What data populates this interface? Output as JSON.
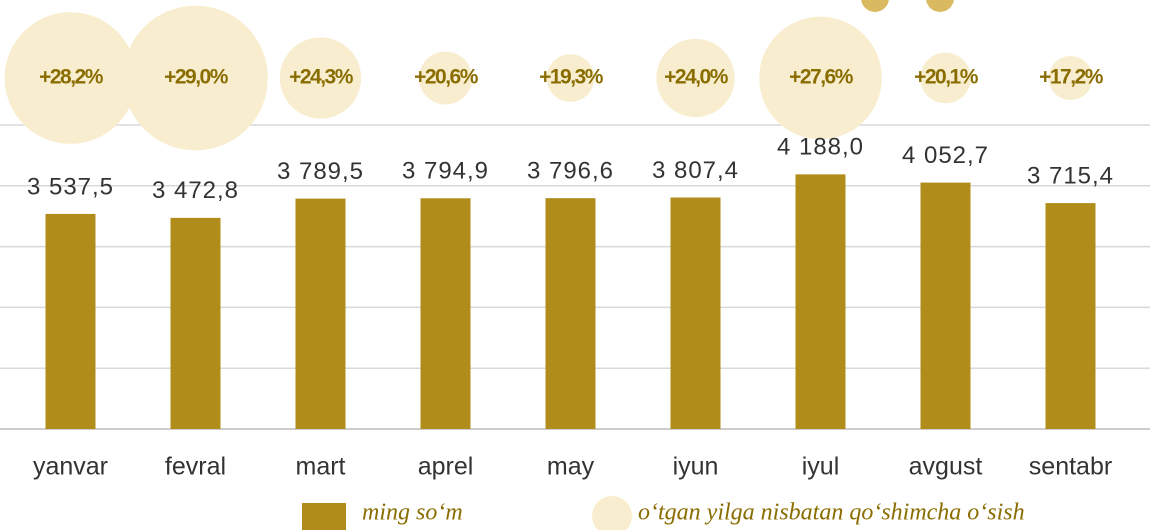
{
  "chart_data": {
    "type": "bar",
    "categories": [
      "yanvar",
      "fevral",
      "mart",
      "aprel",
      "may",
      "iyun",
      "iyul",
      "avgust",
      "sentabr"
    ],
    "series": [
      {
        "name": "ming so‘m",
        "color": "#b08d1a",
        "values": [
          3537.5,
          3472.8,
          3789.5,
          3794.9,
          3796.6,
          3807.4,
          4188.0,
          4052.7,
          3715.4
        ],
        "value_labels": [
          "3 537,5",
          "3 472,8",
          "3 789,5",
          "3 794,9",
          "3 796,6",
          "3 807,4",
          "4 188,0",
          "4 052,7",
          "3 715,4"
        ]
      },
      {
        "name": "o‘tgan yilga nisbatan qo‘shimcha o‘sish",
        "type": "bubble",
        "color": "#f8eecf",
        "values": [
          28.2,
          29.0,
          24.3,
          20.6,
          19.3,
          24.0,
          27.6,
          20.1,
          17.2
        ],
        "value_labels": [
          "+28,2%",
          "+29,0%",
          "+24,3%",
          "+20,6%",
          "+19,3%",
          "+24,0%",
          "+27,6%",
          "+20,1%",
          "+17,2%"
        ]
      }
    ],
    "ylim": [
      0,
      5000
    ],
    "yticks": [
      0,
      1000,
      2000,
      3000,
      4000,
      5000
    ],
    "grid": true
  }
}
